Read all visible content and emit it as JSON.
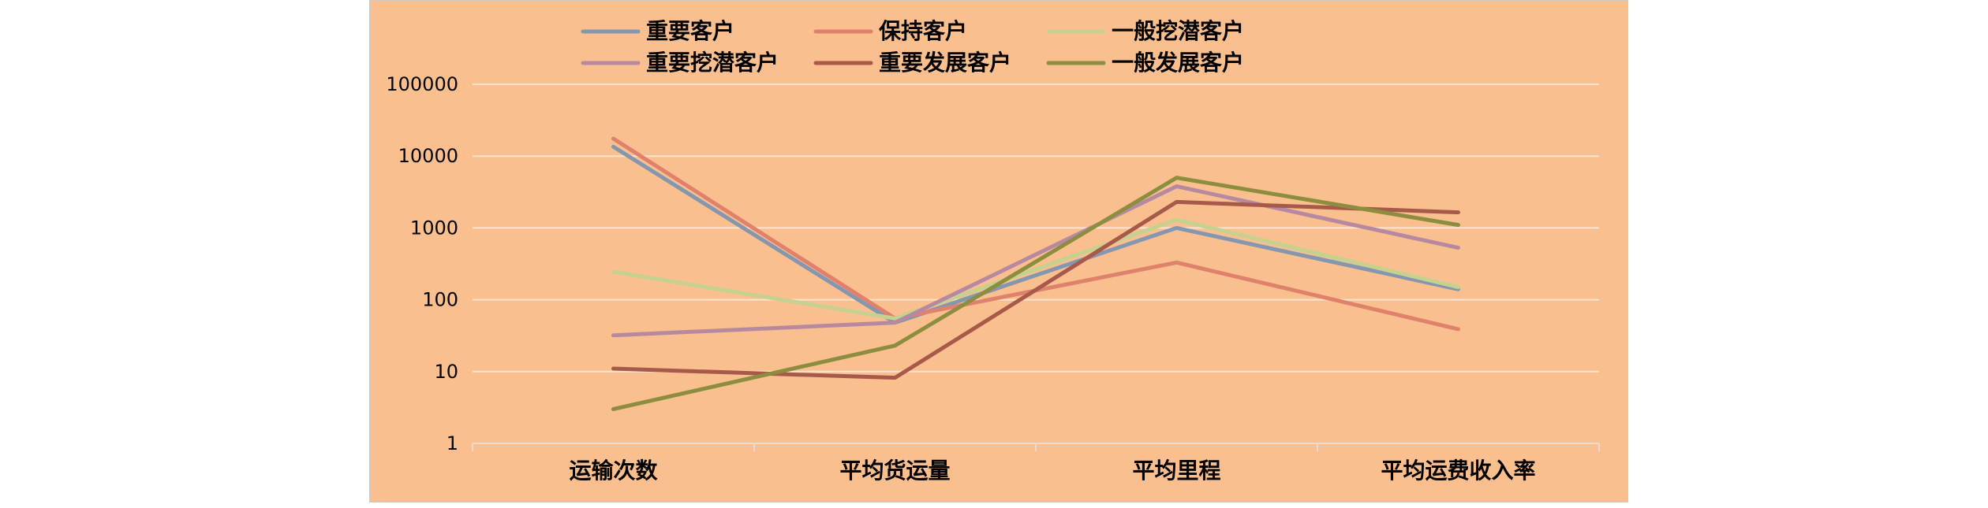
{
  "chart_data": {
    "type": "line",
    "y_scale": "log",
    "ylim": [
      1,
      100000
    ],
    "y_ticks": [
      "1",
      "10",
      "100",
      "1000",
      "10000",
      "100000"
    ],
    "grid": true,
    "legend_position": "top",
    "background": "#f9bf8e",
    "categories": [
      "运输次数",
      "平均货运量",
      "平均里程",
      "平均运费收入率"
    ],
    "series": [
      {
        "name": "重要客户",
        "color": "#8496b0",
        "values": [
          13500,
          48,
          1000,
          140
        ]
      },
      {
        "name": "保持客户",
        "color": "#e0816c",
        "values": [
          17500,
          55,
          330,
          39
        ]
      },
      {
        "name": "一般挖潜客户",
        "color": "#c7d18f",
        "values": [
          245,
          55,
          1300,
          150
        ]
      },
      {
        "name": "重要挖潜客户",
        "color": "#b789a0",
        "values": [
          32,
          48,
          3800,
          530
        ]
      },
      {
        "name": "重要发展客户",
        "color": "#a85a4a",
        "values": [
          11,
          8.2,
          2300,
          1650
        ]
      },
      {
        "name": "一般发展客户",
        "color": "#8c8d3e",
        "values": [
          3,
          23,
          5000,
          1100
        ]
      }
    ]
  }
}
